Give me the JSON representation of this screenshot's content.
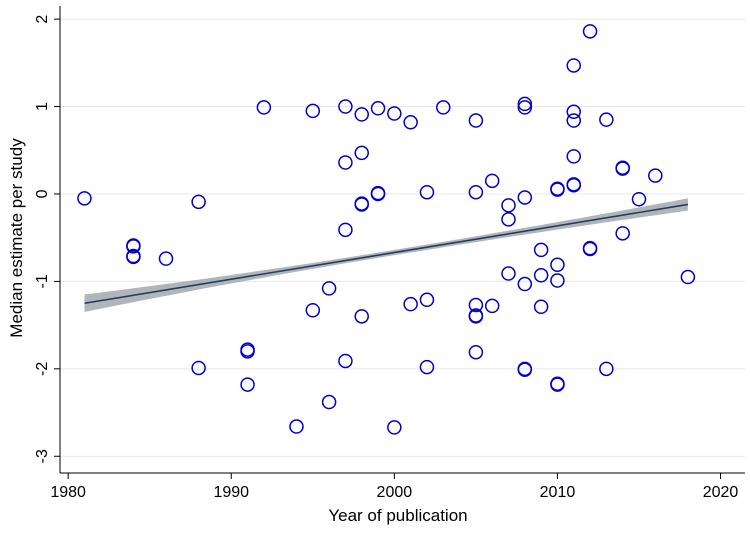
{
  "chart_data": {
    "type": "scatter",
    "title": "",
    "xlabel": "Year of publication",
    "ylabel": "Median estimate per study",
    "xlim": [
      1979.5,
      2021.5
    ],
    "ylim": [
      -3.1,
      2.15
    ],
    "x_ticks": [
      1980,
      1990,
      2000,
      2010,
      2020
    ],
    "y_ticks": [
      2,
      1,
      0,
      -1,
      -2,
      -3
    ],
    "grid": "horizontal",
    "colors": {
      "points": "#0000cc",
      "fit_line": "#1f3f5f",
      "confidence_band": "#a8adb3",
      "grid": "#e8e8e8",
      "axis": "#000000"
    },
    "points": [
      {
        "x": 1981,
        "y": -0.05
      },
      {
        "x": 1984,
        "y": -0.59
      },
      {
        "x": 1984,
        "y": -0.6
      },
      {
        "x": 1984,
        "y": -0.71
      },
      {
        "x": 1984,
        "y": -0.72
      },
      {
        "x": 1986,
        "y": -0.74
      },
      {
        "x": 1988,
        "y": -0.09
      },
      {
        "x": 1988,
        "y": -1.99
      },
      {
        "x": 1991,
        "y": -1.78
      },
      {
        "x": 1991,
        "y": -1.8
      },
      {
        "x": 1991,
        "y": -2.18
      },
      {
        "x": 1992,
        "y": 0.99
      },
      {
        "x": 1994,
        "y": -2.66
      },
      {
        "x": 1995,
        "y": 0.95
      },
      {
        "x": 1995,
        "y": -1.33
      },
      {
        "x": 1996,
        "y": -1.08
      },
      {
        "x": 1996,
        "y": -2.38
      },
      {
        "x": 1997,
        "y": 1.0
      },
      {
        "x": 1997,
        "y": 0.36
      },
      {
        "x": 1997,
        "y": -0.41
      },
      {
        "x": 1997,
        "y": -1.91
      },
      {
        "x": 1998,
        "y": 0.91
      },
      {
        "x": 1998,
        "y": 0.47
      },
      {
        "x": 1998,
        "y": -0.11
      },
      {
        "x": 1998,
        "y": -0.12
      },
      {
        "x": 1998,
        "y": -1.4
      },
      {
        "x": 1999,
        "y": 0.98
      },
      {
        "x": 1999,
        "y": 0.0
      },
      {
        "x": 1999,
        "y": 0.01
      },
      {
        "x": 2000,
        "y": 0.92
      },
      {
        "x": 2000,
        "y": -2.67
      },
      {
        "x": 2001,
        "y": 0.82
      },
      {
        "x": 2001,
        "y": -1.26
      },
      {
        "x": 2002,
        "y": 0.02
      },
      {
        "x": 2002,
        "y": -1.21
      },
      {
        "x": 2002,
        "y": -1.98
      },
      {
        "x": 2003,
        "y": 0.99
      },
      {
        "x": 2005,
        "y": 0.84
      },
      {
        "x": 2005,
        "y": 0.02
      },
      {
        "x": 2005,
        "y": -1.27
      },
      {
        "x": 2005,
        "y": -1.39
      },
      {
        "x": 2005,
        "y": -1.4
      },
      {
        "x": 2005,
        "y": -1.81
      },
      {
        "x": 2006,
        "y": 0.15
      },
      {
        "x": 2006,
        "y": -1.28
      },
      {
        "x": 2007,
        "y": -0.13
      },
      {
        "x": 2007,
        "y": -0.29
      },
      {
        "x": 2007,
        "y": -0.91
      },
      {
        "x": 2008,
        "y": 1.03
      },
      {
        "x": 2008,
        "y": 0.99
      },
      {
        "x": 2008,
        "y": -0.04
      },
      {
        "x": 2008,
        "y": -1.03
      },
      {
        "x": 2008,
        "y": -2.0
      },
      {
        "x": 2008,
        "y": -2.01
      },
      {
        "x": 2009,
        "y": -0.64
      },
      {
        "x": 2009,
        "y": -0.93
      },
      {
        "x": 2009,
        "y": -1.29
      },
      {
        "x": 2010,
        "y": 0.06
      },
      {
        "x": 2010,
        "y": 0.05
      },
      {
        "x": 2010,
        "y": -0.81
      },
      {
        "x": 2010,
        "y": -0.99
      },
      {
        "x": 2010,
        "y": -2.17
      },
      {
        "x": 2010,
        "y": -2.18
      },
      {
        "x": 2011,
        "y": 1.47
      },
      {
        "x": 2011,
        "y": 0.94
      },
      {
        "x": 2011,
        "y": 0.84
      },
      {
        "x": 2011,
        "y": 0.43
      },
      {
        "x": 2011,
        "y": 0.11
      },
      {
        "x": 2011,
        "y": 0.1
      },
      {
        "x": 2012,
        "y": 1.86
      },
      {
        "x": 2012,
        "y": -0.62
      },
      {
        "x": 2012,
        "y": -0.63
      },
      {
        "x": 2013,
        "y": 0.85
      },
      {
        "x": 2013,
        "y": -2.0
      },
      {
        "x": 2014,
        "y": 0.3
      },
      {
        "x": 2014,
        "y": 0.29
      },
      {
        "x": 2014,
        "y": -0.45
      },
      {
        "x": 2015,
        "y": -0.06
      },
      {
        "x": 2016,
        "y": 0.21
      },
      {
        "x": 2018,
        "y": -0.95
      }
    ],
    "fit_line": {
      "x": [
        1981,
        2018
      ],
      "y": [
        -1.25,
        -0.12
      ],
      "ci_halfwidth_at_ends": [
        0.1,
        0.07
      ],
      "ci_halfwidth_mid": 0.03
    }
  }
}
